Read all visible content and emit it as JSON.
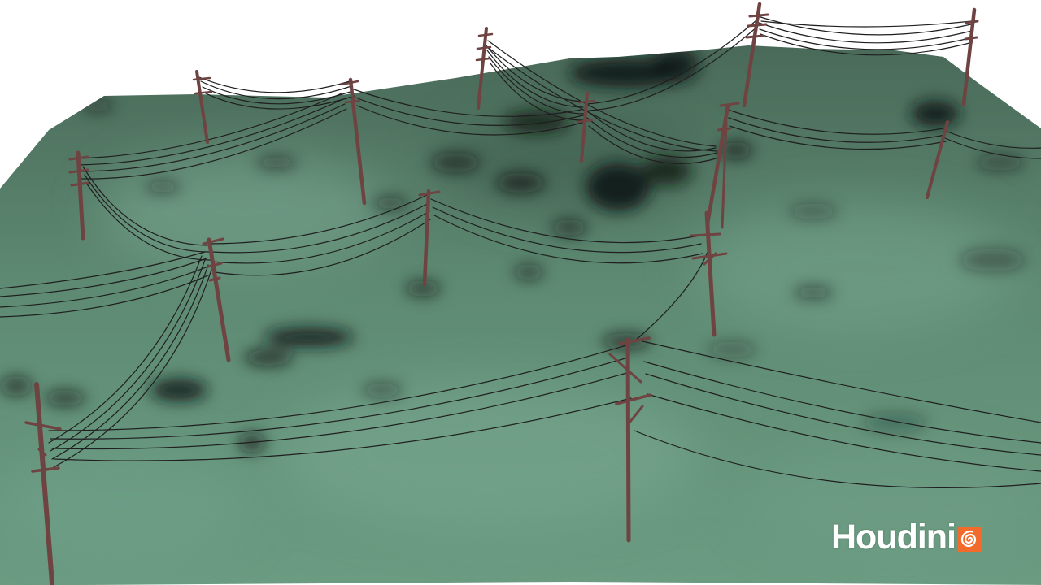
{
  "viewport": {
    "background": "#ffffff",
    "terrain_color": "#5e8a73",
    "shadow_color": "#121614",
    "pole_color": "#7a4a48",
    "wire_color": "#1f1f1f"
  },
  "watermark": {
    "text": "Houdini",
    "text_color": "#ffffff",
    "icon": "houdini-swirl-icon",
    "icon_color": "#f26b2a"
  }
}
